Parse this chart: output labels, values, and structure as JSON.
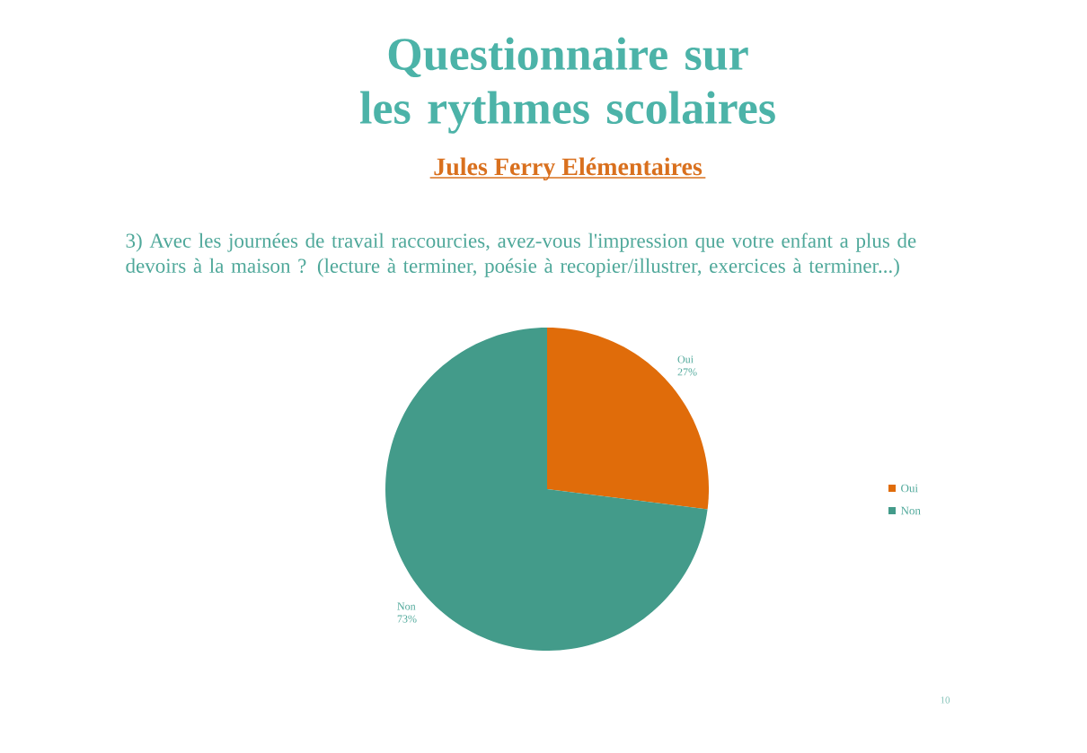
{
  "chart_data": {
    "type": "pie",
    "title": "Questionnaire sur les rythmes scolaires",
    "subtitle": "Jules Ferry Elémentaires",
    "annotations": [
      "3) Avec les journées de travail raccourcies, avez-vous l'impression que votre enfant a plus de devoirs à la maison ? (lecture à terminer, poésie à recopier/illustrer, exercices à terminer...)",
      "10"
    ],
    "categories": [
      "Oui",
      "Non"
    ],
    "values": [
      27,
      73
    ],
    "colors": [
      "#e06c0a",
      "#439b8a"
    ],
    "value_labels": [
      "27%",
      "73%"
    ],
    "legend": "right"
  }
}
